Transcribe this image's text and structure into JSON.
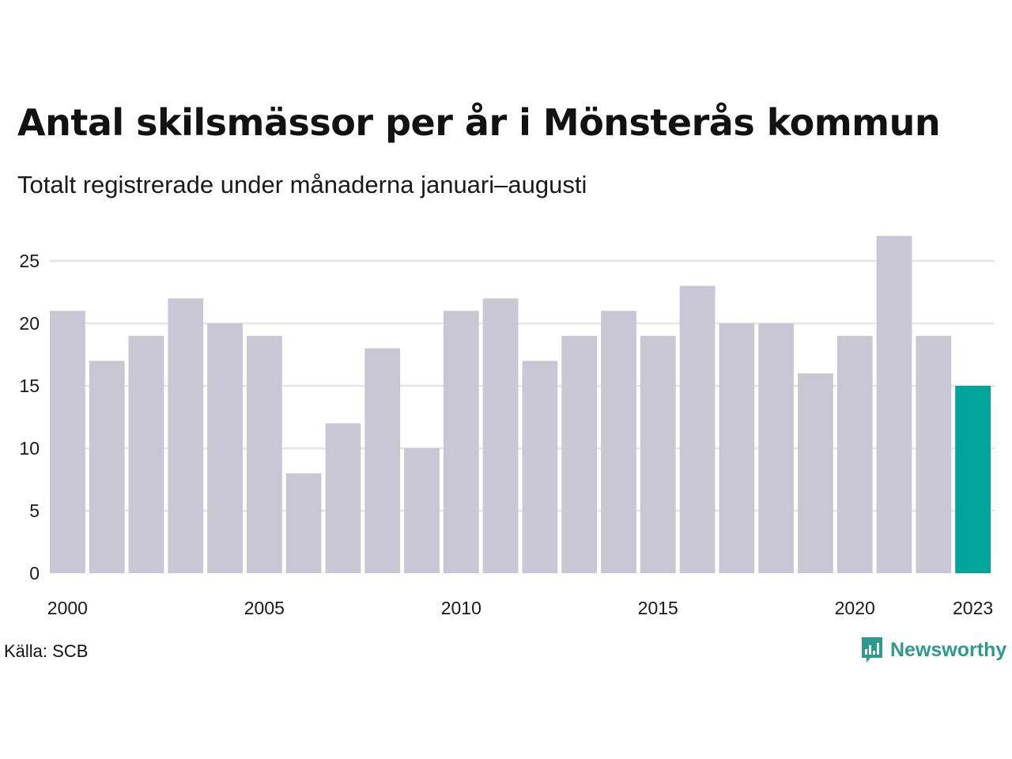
{
  "header": {
    "title": "Antal skilsmässor per år i Mönsterås kommun",
    "subtitle": "Totalt registrerade under månaderna januari–augusti"
  },
  "footer": {
    "source": "Källa: SCB",
    "brand": "Newsworthy",
    "brand_icon": "bar-chart-speech-bubble-icon"
  },
  "colors": {
    "bar": "#c8c7d3",
    "highlight": "#00a499",
    "grid": "#e6e6e6",
    "brand": "#2f9a8c"
  },
  "chart_data": {
    "type": "bar",
    "title": "Antal skilsmässor per år i Mönsterås kommun",
    "subtitle": "Totalt registrerade under månaderna januari–augusti",
    "categories": [
      2000,
      2001,
      2002,
      2003,
      2004,
      2005,
      2006,
      2007,
      2008,
      2009,
      2010,
      2011,
      2012,
      2013,
      2014,
      2015,
      2016,
      2017,
      2018,
      2019,
      2020,
      2021,
      2022,
      2023
    ],
    "values": [
      21,
      17,
      19,
      22,
      20,
      19,
      8,
      12,
      18,
      10,
      21,
      22,
      17,
      19,
      21,
      19,
      23,
      20,
      20,
      16,
      19,
      27,
      19,
      15
    ],
    "highlight_category": 2023,
    "x_tick_labels": [
      "2000",
      "2005",
      "2010",
      "2015",
      "2020",
      "2023"
    ],
    "y_ticks": [
      0,
      5,
      10,
      15,
      20,
      25
    ],
    "ylim": [
      0,
      27
    ],
    "xlabel": "",
    "ylabel": "",
    "grid": "horizontal"
  }
}
